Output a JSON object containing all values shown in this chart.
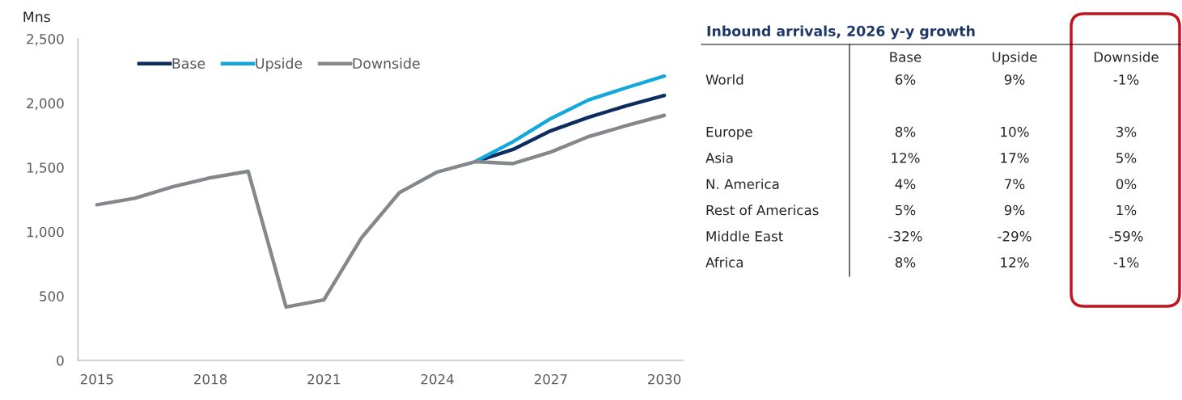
{
  "chart_data": [
    {
      "type": "line",
      "ylabel": "Mns",
      "xlim": [
        2014.5,
        2030.5
      ],
      "ylim": [
        0,
        2500
      ],
      "xticks": [
        2015,
        2018,
        2021,
        2024,
        2027,
        2030
      ],
      "yticks": [
        0,
        {
          "value": 500,
          "label": "500"
        },
        {
          "value": 1000,
          "label": "1,000"
        },
        {
          "value": 1500,
          "label": "1,500"
        },
        {
          "value": 2000,
          "label": "2,000"
        },
        {
          "value": 2500,
          "label": "2,500"
        }
      ],
      "grid": false,
      "legend": "top left",
      "marker": "none",
      "line_style": "solid",
      "series": [
        {
          "name": "Base",
          "color": "#0c2d5e",
          "x": [
            2025,
            2026,
            2027,
            2028,
            2029,
            2030
          ],
          "values": [
            1545,
            1640,
            1785,
            1890,
            1980,
            2060
          ]
        },
        {
          "name": "Upside",
          "color": "#13a8dc",
          "x": [
            2025,
            2026,
            2027,
            2028,
            2029,
            2030
          ],
          "values": [
            1545,
            1700,
            1880,
            2025,
            2120,
            2210
          ]
        },
        {
          "name": "Downside",
          "color": "#85888b",
          "x": [
            2015,
            2016,
            2017,
            2018,
            2019,
            2020,
            2021,
            2022,
            2023,
            2024,
            2025,
            2026,
            2027,
            2028,
            2029,
            2030
          ],
          "values": [
            1210,
            1260,
            1350,
            1420,
            1470,
            415,
            470,
            955,
            1305,
            1465,
            1545,
            1530,
            1620,
            1740,
            1825,
            1905
          ]
        }
      ]
    },
    {
      "type": "other",
      "title": "Inbound arrivals, 2026 y-y growth",
      "categories": [
        "Base",
        "Upside",
        "Downside"
      ],
      "y_categories": [
        "World",
        null,
        "Europe",
        "Asia",
        "N. America",
        "Rest of Americas",
        "Middle East",
        "Africa"
      ],
      "cell_labels": [
        [
          "6%",
          "9%",
          "-1%"
        ],
        [
          null,
          null,
          null
        ],
        [
          "8%",
          "10%",
          "3%"
        ],
        [
          "12%",
          "17%",
          "5%"
        ],
        [
          "4%",
          "7%",
          "0%"
        ],
        [
          "5%",
          "9%",
          "1%"
        ],
        [
          "-32%",
          "-29%",
          "-59%"
        ],
        [
          "8%",
          "12%",
          "-1%"
        ]
      ]
    }
  ]
}
